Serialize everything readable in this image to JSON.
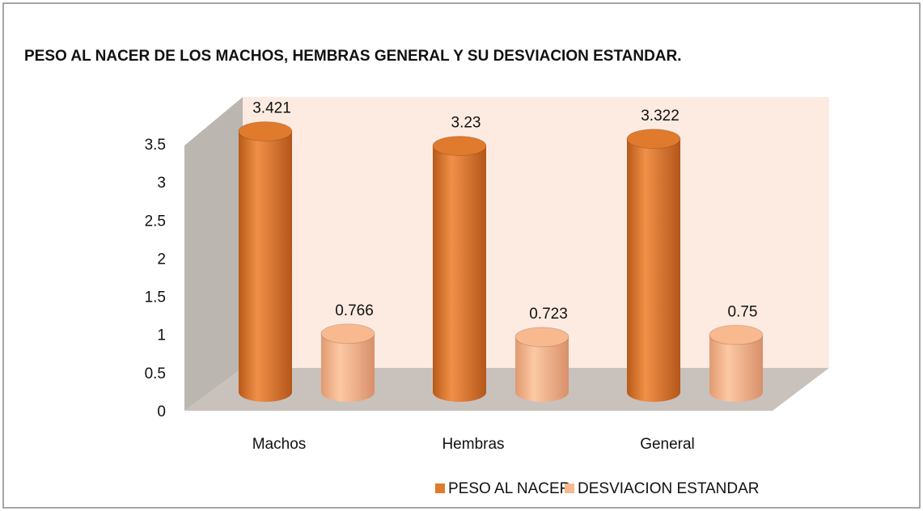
{
  "chart_data": {
    "type": "bar3d",
    "title": "PESO AL NACER DE LOS MACHOS, HEMBRAS GENERAL Y SU DESVIACION ESTANDAR.",
    "categories": [
      "Machos",
      "Hembras",
      "General"
    ],
    "series": [
      {
        "name": "PESO AL NACER",
        "color": "#e07a2c",
        "values": [
          3.421,
          3.23,
          3.322
        ]
      },
      {
        "name": "DESVIACION ESTANDAR",
        "color": "#f9b98e",
        "values": [
          0.766,
          0.723,
          0.75
        ]
      }
    ],
    "ylim": [
      0,
      3.5
    ],
    "yticks": [
      0,
      0.5,
      1,
      1.5,
      2,
      2.5,
      3,
      3.5
    ],
    "legend": "bottom"
  }
}
